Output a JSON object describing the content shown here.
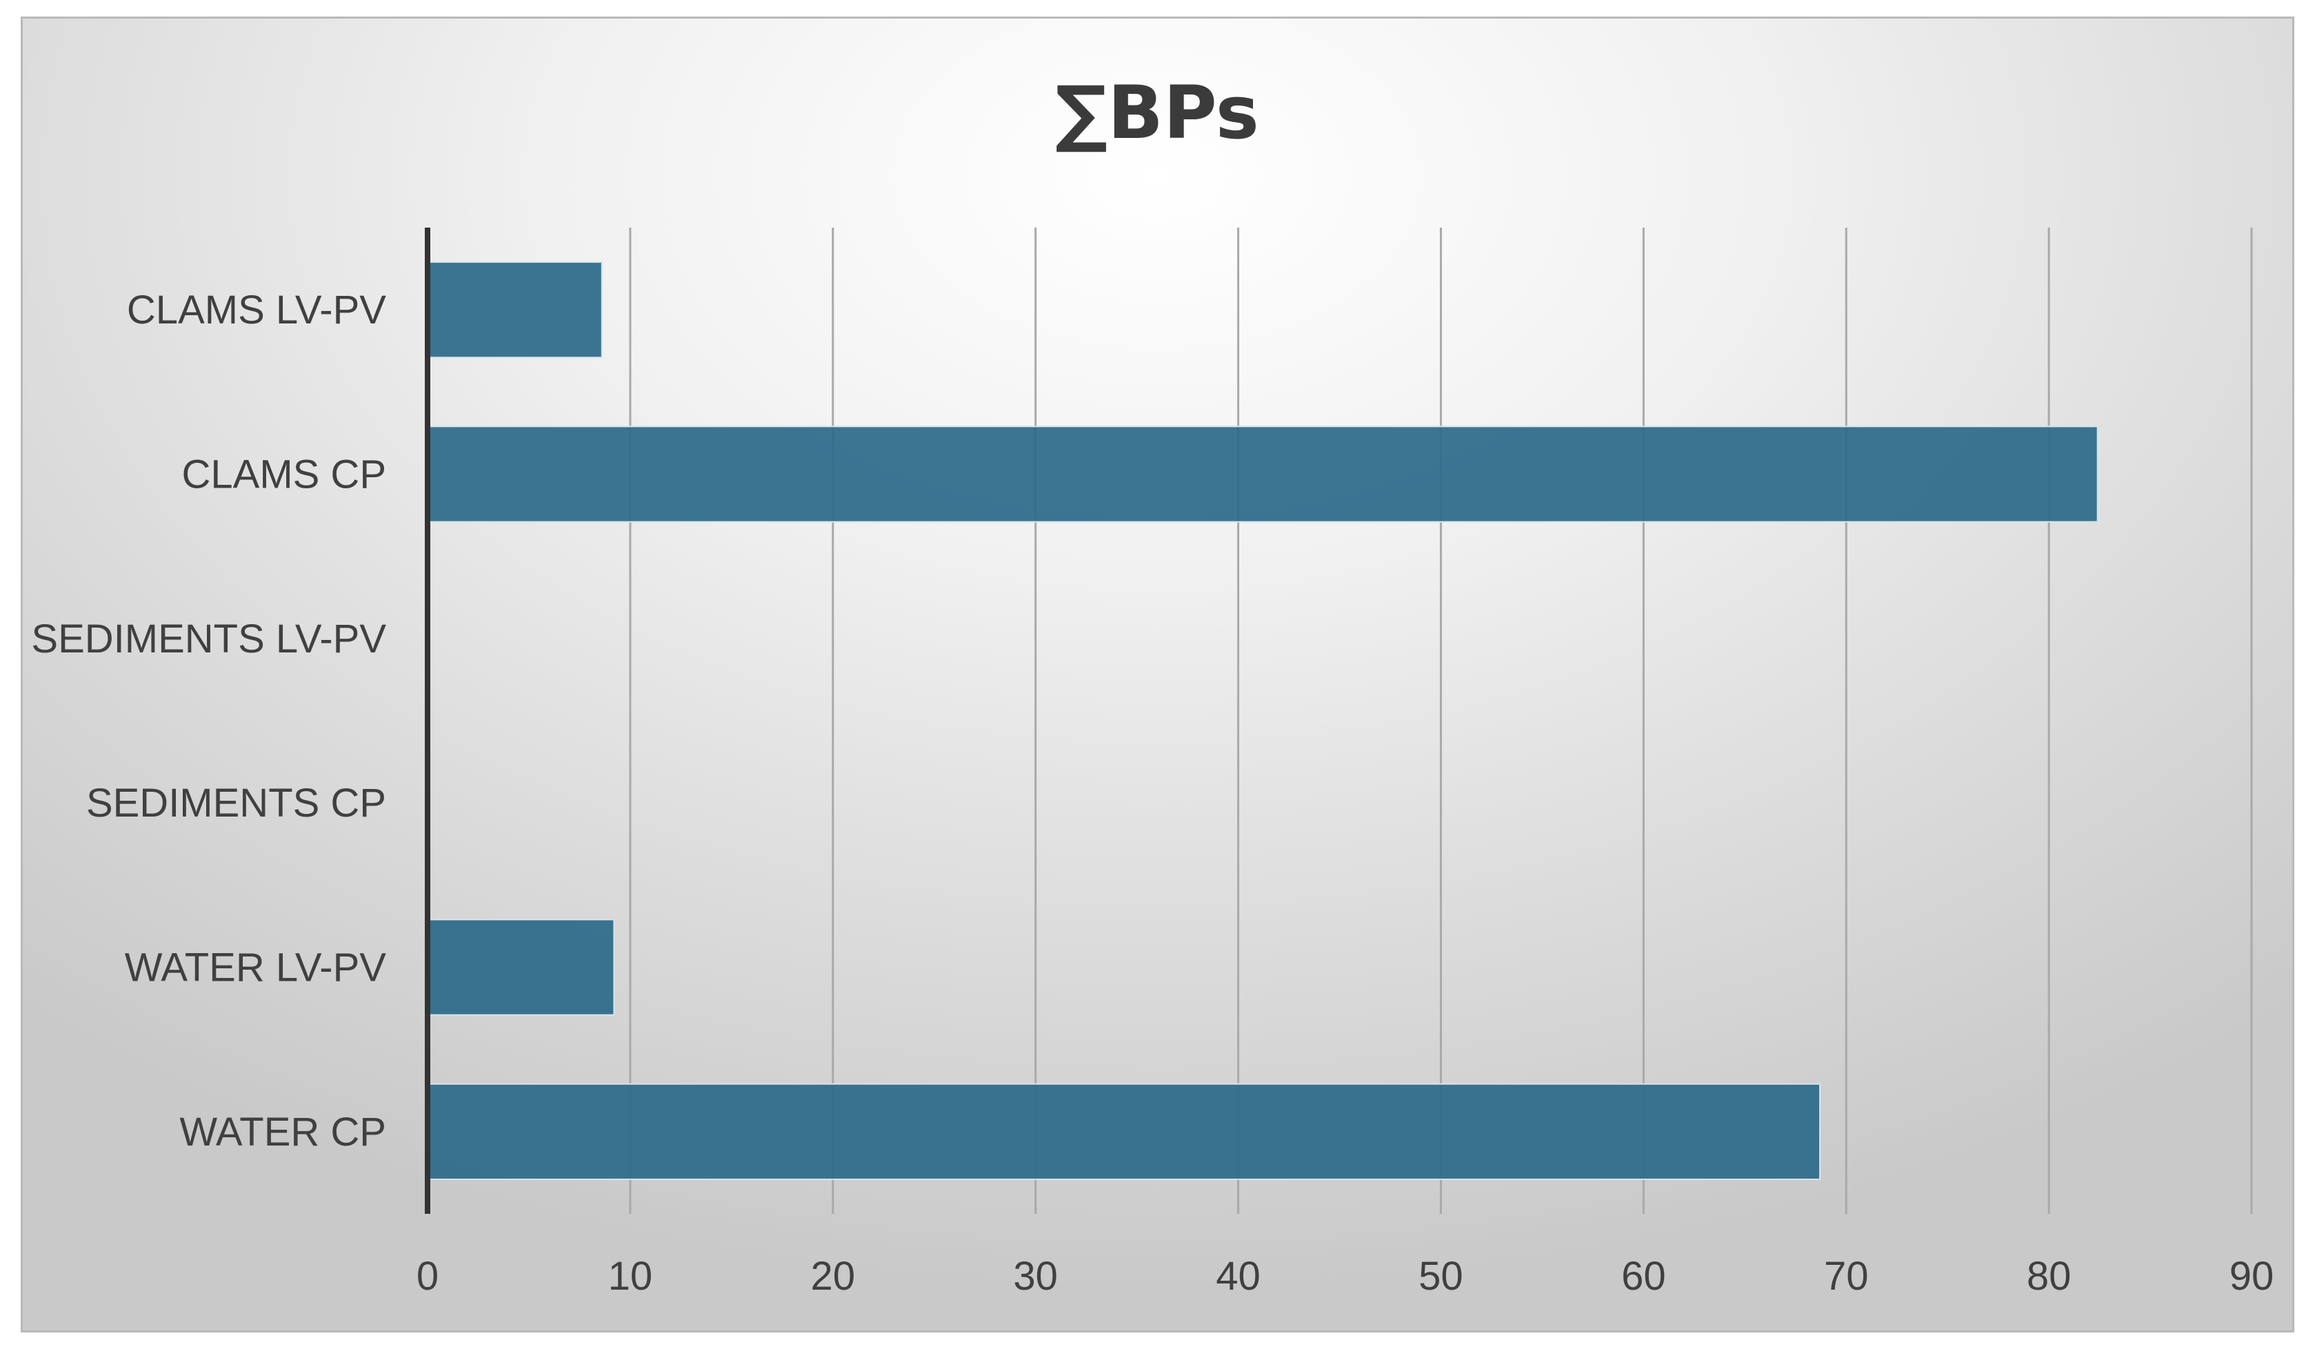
{
  "chart_data": {
    "type": "bar",
    "orientation": "horizontal",
    "title": "∑BPs",
    "xlabel": "",
    "ylabel": "",
    "categories": [
      "CLAMS LV-PV",
      "CLAMS CP",
      "SEDIMENTS LV-PV",
      "SEDIMENTS CP",
      "WATER LV-PV",
      "WATER CP"
    ],
    "values": [
      8.6,
      82.4,
      0,
      0,
      9.2,
      68.7
    ],
    "xlim": [
      0,
      90
    ],
    "xticks": [
      0,
      10,
      20,
      30,
      40,
      50,
      60,
      70,
      80,
      90
    ],
    "grid": "vertical",
    "legend": "none",
    "bar_color": "#2c6b8a",
    "gridline_color": "#a9a9a9",
    "axis_color": "#333333"
  }
}
